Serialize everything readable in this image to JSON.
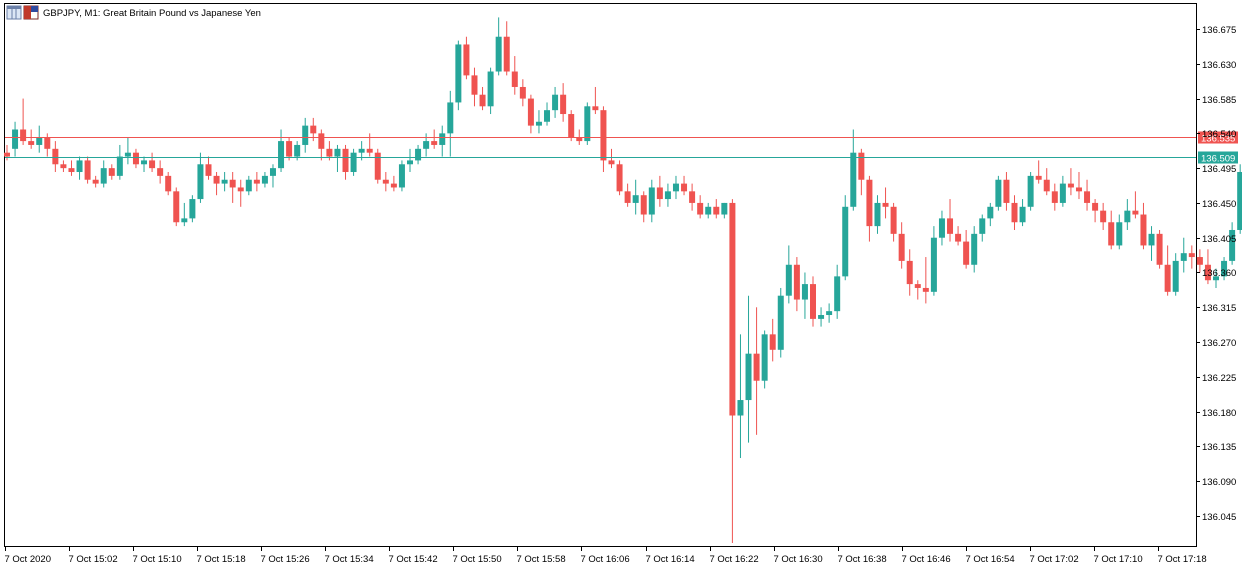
{
  "header": {
    "symbol_line": "GBPJPY, M1:  Great Britain Pound vs Japanese Yen"
  },
  "icons": {
    "window_icon": "window-grid-icon",
    "flag_icon": "currency-flag-icon"
  },
  "colors": {
    "bull": "#26a69a",
    "bear": "#ef5350",
    "ask_line": "#ef5350",
    "bid_line": "#26a69a",
    "axis": "#000000",
    "background": "#ffffff"
  },
  "chart_data": {
    "type": "candlestick",
    "timeframe": "M1",
    "title": "GBPJPY, M1:  Great Britain Pound vs Japanese Yen",
    "ylim": [
      136.015,
      136.71
    ],
    "y_ticks": [
      "136.675",
      "136.630",
      "136.585",
      "136.540",
      "136.495",
      "136.450",
      "136.405",
      "136.360",
      "136.315",
      "136.270",
      "136.225",
      "136.180",
      "136.135",
      "136.090",
      "136.045"
    ],
    "x_ticks": [
      "7 Oct 2020",
      "7 Oct 15:02",
      "7 Oct 15:10",
      "7 Oct 15:18",
      "7 Oct 15:26",
      "7 Oct 15:34",
      "7 Oct 15:42",
      "7 Oct 15:50",
      "7 Oct 15:58",
      "7 Oct 16:06",
      "7 Oct 16:14",
      "7 Oct 16:22",
      "7 Oct 16:30",
      "7 Oct 16:38",
      "7 Oct 16:46",
      "7 Oct 16:54",
      "7 Oct 17:02",
      "7 Oct 17:10",
      "7 Oct 17:18"
    ],
    "price_lines": {
      "ask": {
        "value": 136.535,
        "label": "136.535"
      },
      "bid": {
        "value": 136.509,
        "label": "136.509"
      }
    },
    "ohlc": [
      [
        136.515,
        136.525,
        136.505,
        136.51
      ],
      [
        136.52,
        136.555,
        136.51,
        136.545
      ],
      [
        136.545,
        136.585,
        136.525,
        136.53
      ],
      [
        136.53,
        136.545,
        136.52,
        136.525
      ],
      [
        136.525,
        136.55,
        136.515,
        136.535
      ],
      [
        136.535,
        136.54,
        136.51,
        136.52
      ],
      [
        136.52,
        136.53,
        136.49,
        136.5
      ],
      [
        136.5,
        136.505,
        136.49,
        136.495
      ],
      [
        136.495,
        136.505,
        136.485,
        136.49
      ],
      [
        136.49,
        136.51,
        136.48,
        136.505
      ],
      [
        136.505,
        136.51,
        136.475,
        136.48
      ],
      [
        136.48,
        136.485,
        136.47,
        136.475
      ],
      [
        136.475,
        136.505,
        136.47,
        136.495
      ],
      [
        136.495,
        136.5,
        136.48,
        136.485
      ],
      [
        136.485,
        136.525,
        136.48,
        136.51
      ],
      [
        136.51,
        136.535,
        136.5,
        136.515
      ],
      [
        136.515,
        136.52,
        136.495,
        136.5
      ],
      [
        136.5,
        136.51,
        136.49,
        136.505
      ],
      [
        136.505,
        136.515,
        136.49,
        136.495
      ],
      [
        136.495,
        136.505,
        136.475,
        136.485
      ],
      [
        136.485,
        136.49,
        136.46,
        136.465
      ],
      [
        136.465,
        136.47,
        136.42,
        136.425
      ],
      [
        136.425,
        136.45,
        136.42,
        136.43
      ],
      [
        136.43,
        136.46,
        136.425,
        136.455
      ],
      [
        136.455,
        136.515,
        136.45,
        136.5
      ],
      [
        136.5,
        136.51,
        136.48,
        136.485
      ],
      [
        136.485,
        136.49,
        136.46,
        136.475
      ],
      [
        136.475,
        136.49,
        136.465,
        136.48
      ],
      [
        136.48,
        136.49,
        136.45,
        136.47
      ],
      [
        136.47,
        136.48,
        136.445,
        136.465
      ],
      [
        136.465,
        136.485,
        136.46,
        136.48
      ],
      [
        136.48,
        136.49,
        136.465,
        136.475
      ],
      [
        136.475,
        136.49,
        136.47,
        136.485
      ],
      [
        136.485,
        136.5,
        136.47,
        136.495
      ],
      [
        136.495,
        136.545,
        136.49,
        136.53
      ],
      [
        136.53,
        136.535,
        136.505,
        136.51
      ],
      [
        136.51,
        136.53,
        136.505,
        136.525
      ],
      [
        136.525,
        136.56,
        136.515,
        136.55
      ],
      [
        136.55,
        136.56,
        136.53,
        136.54
      ],
      [
        136.54,
        136.545,
        136.505,
        136.52
      ],
      [
        136.52,
        136.53,
        136.505,
        136.51
      ],
      [
        136.51,
        136.525,
        136.49,
        136.52
      ],
      [
        136.52,
        136.525,
        136.48,
        136.49
      ],
      [
        136.49,
        136.52,
        136.485,
        136.515
      ],
      [
        136.515,
        136.53,
        136.505,
        136.52
      ],
      [
        136.52,
        136.54,
        136.51,
        136.515
      ],
      [
        136.515,
        136.52,
        136.475,
        136.48
      ],
      [
        136.48,
        136.49,
        136.465,
        136.475
      ],
      [
        136.475,
        136.485,
        136.465,
        136.47
      ],
      [
        136.47,
        136.505,
        136.465,
        136.5
      ],
      [
        136.5,
        136.52,
        136.49,
        136.505
      ],
      [
        136.505,
        136.525,
        136.5,
        136.52
      ],
      [
        136.52,
        136.54,
        136.51,
        136.53
      ],
      [
        136.53,
        136.545,
        136.52,
        136.525
      ],
      [
        136.525,
        136.55,
        136.51,
        136.54
      ],
      [
        136.54,
        136.595,
        136.51,
        136.58
      ],
      [
        136.58,
        136.66,
        136.57,
        136.655
      ],
      [
        136.655,
        136.665,
        136.61,
        136.615
      ],
      [
        136.615,
        136.625,
        136.575,
        136.59
      ],
      [
        136.59,
        136.6,
        136.57,
        136.575
      ],
      [
        136.575,
        136.625,
        136.565,
        136.62
      ],
      [
        136.62,
        136.69,
        136.615,
        136.665
      ],
      [
        136.665,
        136.685,
        136.615,
        136.62
      ],
      [
        136.62,
        136.64,
        136.59,
        136.6
      ],
      [
        136.6,
        136.61,
        136.575,
        136.585
      ],
      [
        136.585,
        136.59,
        136.54,
        136.55
      ],
      [
        136.55,
        136.57,
        136.54,
        136.555
      ],
      [
        136.555,
        136.58,
        136.55,
        136.57
      ],
      [
        136.57,
        136.6,
        136.56,
        136.59
      ],
      [
        136.59,
        136.605,
        136.555,
        136.565
      ],
      [
        136.565,
        136.57,
        136.53,
        136.535
      ],
      [
        136.535,
        136.545,
        136.525,
        136.53
      ],
      [
        136.53,
        136.58,
        136.525,
        136.575
      ],
      [
        136.575,
        136.6,
        136.565,
        136.57
      ],
      [
        136.57,
        136.575,
        136.49,
        136.505
      ],
      [
        136.505,
        136.52,
        136.495,
        136.5
      ],
      [
        136.5,
        136.505,
        136.46,
        136.465
      ],
      [
        136.465,
        136.475,
        136.445,
        136.45
      ],
      [
        136.45,
        136.48,
        136.435,
        136.46
      ],
      [
        136.46,
        136.465,
        136.425,
        136.435
      ],
      [
        136.435,
        136.48,
        136.425,
        136.47
      ],
      [
        136.47,
        136.485,
        136.445,
        136.455
      ],
      [
        136.455,
        136.475,
        136.445,
        136.465
      ],
      [
        136.465,
        136.485,
        136.455,
        136.475
      ],
      [
        136.475,
        136.485,
        136.46,
        136.465
      ],
      [
        136.465,
        136.475,
        136.44,
        136.45
      ],
      [
        136.45,
        136.46,
        136.43,
        136.435
      ],
      [
        136.435,
        136.45,
        136.43,
        136.445
      ],
      [
        136.445,
        136.455,
        136.43,
        136.435
      ],
      [
        136.435,
        136.45,
        136.43,
        136.45
      ],
      [
        136.45,
        136.455,
        136.01,
        136.175
      ],
      [
        136.175,
        136.28,
        136.12,
        136.195
      ],
      [
        136.195,
        136.33,
        136.14,
        136.255
      ],
      [
        136.255,
        136.315,
        136.15,
        136.22
      ],
      [
        136.22,
        136.285,
        136.21,
        136.28
      ],
      [
        136.28,
        136.3,
        136.245,
        136.26
      ],
      [
        136.26,
        136.34,
        136.25,
        136.33
      ],
      [
        136.33,
        136.395,
        136.32,
        136.37
      ],
      [
        136.37,
        136.38,
        136.31,
        136.325
      ],
      [
        136.325,
        136.36,
        136.3,
        136.345
      ],
      [
        136.345,
        136.355,
        136.29,
        136.3
      ],
      [
        136.3,
        136.315,
        136.29,
        136.305
      ],
      [
        136.305,
        136.32,
        136.295,
        136.31
      ],
      [
        136.31,
        136.37,
        136.3,
        136.355
      ],
      [
        136.355,
        136.46,
        136.35,
        136.445
      ],
      [
        136.445,
        136.545,
        136.44,
        136.515
      ],
      [
        136.515,
        136.52,
        136.46,
        136.48
      ],
      [
        136.48,
        136.485,
        136.4,
        136.42
      ],
      [
        136.42,
        136.46,
        136.41,
        136.45
      ],
      [
        136.45,
        136.47,
        136.43,
        136.445
      ],
      [
        136.445,
        136.45,
        136.4,
        136.41
      ],
      [
        136.41,
        136.425,
        136.365,
        136.375
      ],
      [
        136.375,
        136.39,
        136.33,
        136.345
      ],
      [
        136.345,
        136.35,
        136.325,
        136.34
      ],
      [
        136.34,
        136.38,
        136.32,
        136.335
      ],
      [
        136.335,
        136.42,
        136.33,
        136.405
      ],
      [
        136.405,
        136.44,
        136.395,
        136.43
      ],
      [
        136.43,
        136.455,
        136.4,
        136.41
      ],
      [
        136.41,
        136.42,
        136.395,
        136.4
      ],
      [
        136.4,
        136.415,
        136.365,
        136.37
      ],
      [
        136.37,
        136.42,
        136.36,
        136.41
      ],
      [
        136.41,
        136.435,
        136.4,
        136.43
      ],
      [
        136.43,
        136.45,
        136.42,
        136.445
      ],
      [
        136.445,
        136.485,
        136.44,
        136.48
      ],
      [
        136.48,
        136.49,
        136.44,
        136.45
      ],
      [
        136.45,
        136.46,
        136.415,
        136.425
      ],
      [
        136.425,
        136.455,
        136.42,
        136.445
      ],
      [
        136.445,
        136.49,
        136.44,
        136.485
      ],
      [
        136.485,
        136.505,
        136.475,
        136.48
      ],
      [
        136.48,
        136.495,
        136.46,
        136.465
      ],
      [
        136.465,
        136.475,
        136.44,
        136.45
      ],
      [
        136.45,
        136.485,
        136.445,
        136.475
      ],
      [
        136.475,
        136.495,
        136.46,
        136.47
      ],
      [
        136.47,
        136.49,
        136.455,
        136.465
      ],
      [
        136.465,
        136.48,
        136.44,
        136.45
      ],
      [
        136.45,
        136.455,
        136.425,
        136.44
      ],
      [
        136.44,
        136.45,
        136.415,
        136.425
      ],
      [
        136.425,
        136.44,
        136.39,
        136.395
      ],
      [
        136.395,
        136.435,
        136.39,
        136.425
      ],
      [
        136.425,
        136.455,
        136.415,
        136.44
      ],
      [
        136.44,
        136.465,
        136.43,
        136.435
      ],
      [
        136.435,
        136.45,
        136.39,
        136.395
      ],
      [
        136.395,
        136.42,
        136.375,
        136.41
      ],
      [
        136.41,
        136.415,
        136.365,
        136.37
      ],
      [
        136.37,
        136.395,
        136.33,
        136.335
      ],
      [
        136.335,
        136.385,
        136.33,
        136.375
      ],
      [
        136.375,
        136.405,
        136.36,
        136.385
      ],
      [
        136.385,
        136.395,
        136.365,
        136.38
      ],
      [
        136.38,
        136.39,
        136.36,
        136.37
      ],
      [
        136.37,
        136.39,
        136.345,
        136.35
      ],
      [
        136.35,
        136.365,
        136.34,
        136.355
      ],
      [
        136.355,
        136.38,
        136.35,
        136.375
      ],
      [
        136.375,
        136.425,
        136.37,
        136.415
      ],
      [
        136.415,
        136.5,
        136.41,
        136.49
      ],
      [
        136.49,
        136.51,
        136.46,
        136.5
      ],
      [
        136.5,
        136.52,
        136.495,
        136.51
      ]
    ]
  }
}
